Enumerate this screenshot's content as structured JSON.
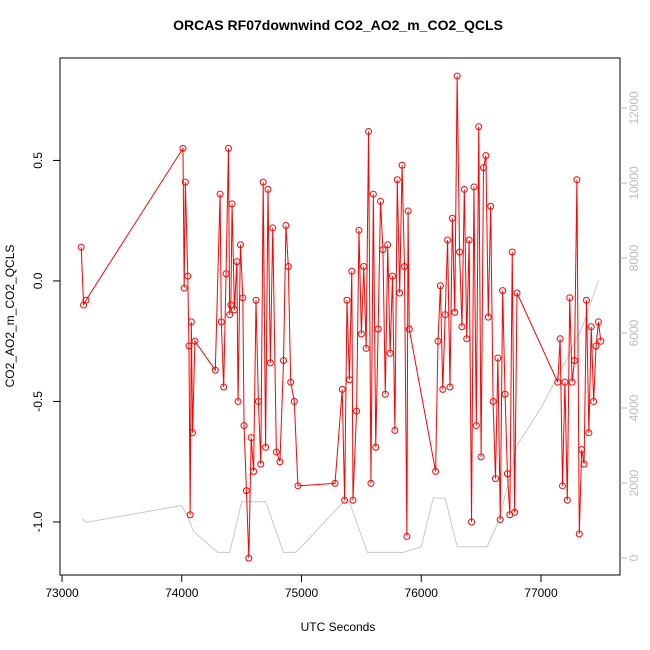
{
  "chart_data": {
    "type": "line",
    "title": "ORCAS RF07downwind CO2_AO2_m_CO2_QCLS",
    "x_label": "UTC Seconds",
    "y_label": "CO2_AO2_m_CO2_QCLS",
    "xlim": [
      72983,
      77660
    ],
    "ylim": [
      -1.22,
      0.925
    ],
    "y2lim": [
      -453,
      13333
    ],
    "xticks": [
      73000,
      74000,
      75000,
      76000,
      77000
    ],
    "yticks": [
      {
        "value": -1,
        "label": "-1.0"
      },
      -0.5,
      {
        "value": 0,
        "label": "0.0"
      },
      0.5
    ],
    "y2ticks": [
      0,
      2000,
      4000,
      6000,
      8000,
      10000,
      12000
    ],
    "grid": false,
    "series": [
      {
        "color": "#ff0000",
        "markers": true,
        "x": [
          73160,
          73180,
          73200,
          74010,
          74020,
          74030,
          74050,
          74060,
          74070,
          74080,
          74090,
          74110,
          74280,
          74320,
          74330,
          74350,
          74370,
          74390,
          74400,
          74410,
          74420,
          74440,
          74460,
          74470,
          74490,
          74510,
          74520,
          74540,
          74560,
          74580,
          74600,
          74620,
          74640,
          74660,
          74680,
          74700,
          74720,
          74740,
          74760,
          74790,
          74820,
          74850,
          74870,
          74890,
          74910,
          74940,
          74970,
          75280,
          75340,
          75360,
          75380,
          75400,
          75420,
          75430,
          75460,
          75480,
          75500,
          75520,
          75540,
          75560,
          75580,
          75600,
          75620,
          75640,
          75660,
          75680,
          75700,
          75720,
          75740,
          75760,
          75780,
          75800,
          75820,
          75840,
          75860,
          75880,
          75890,
          75900,
          76120,
          76140,
          76160,
          76180,
          76200,
          76220,
          76240,
          76260,
          76280,
          76300,
          76320,
          76340,
          76360,
          76380,
          76400,
          76420,
          76440,
          76460,
          76480,
          76500,
          76520,
          76540,
          76560,
          76580,
          76600,
          76620,
          76640,
          76660,
          76680,
          76700,
          76720,
          76740,
          76760,
          76780,
          76800,
          77140,
          77160,
          77180,
          77200,
          77220,
          77240,
          77260,
          77280,
          77300,
          77320,
          77340,
          77360,
          77380,
          77400,
          77420,
          77440,
          77460,
          77480,
          77500
        ],
        "values": [
          0.14,
          -0.1,
          -0.08,
          0.55,
          -0.03,
          0.41,
          0.02,
          -0.27,
          -0.97,
          -0.17,
          -0.63,
          -0.25,
          -0.37,
          0.36,
          -0.17,
          -0.44,
          0.03,
          0.55,
          -0.14,
          -0.1,
          0.32,
          -0.12,
          0.08,
          -0.5,
          0.15,
          -0.07,
          -0.6,
          -0.87,
          -1.15,
          -0.65,
          -0.79,
          -0.08,
          -0.5,
          -0.76,
          0.41,
          -0.69,
          0.38,
          -0.34,
          0.22,
          -0.71,
          -0.75,
          -0.33,
          0.23,
          0.06,
          -0.42,
          -0.5,
          -0.85,
          -0.84,
          -0.45,
          -0.91,
          -0.08,
          -0.41,
          0.04,
          -0.91,
          -0.54,
          0.21,
          -0.22,
          0.06,
          -0.28,
          0.62,
          -0.84,
          0.36,
          -0.69,
          -0.2,
          0.33,
          0.13,
          -0.47,
          0.15,
          -0.3,
          0.02,
          -0.62,
          0.42,
          -0.05,
          0.48,
          0.06,
          -1.06,
          0.29,
          -0.2,
          -0.79,
          -0.25,
          -0.02,
          -0.45,
          -0.14,
          0.17,
          -0.44,
          0.26,
          -0.13,
          0.85,
          0.12,
          -0.19,
          0.38,
          -0.24,
          0.17,
          -1.0,
          0.39,
          -0.6,
          0.64,
          -0.73,
          0.47,
          0.52,
          -0.15,
          0.31,
          -0.5,
          -0.82,
          -0.32,
          -0.99,
          -0.04,
          -0.47,
          -0.8,
          -0.97,
          0.12,
          -0.96,
          -0.05,
          -0.42,
          -0.24,
          -0.85,
          -0.42,
          -0.91,
          -0.07,
          -0.42,
          -0.33,
          0.42,
          -1.05,
          -0.7,
          -0.76,
          -0.08,
          -0.63,
          -0.19,
          -0.5,
          -0.27,
          -0.17,
          -0.25
        ]
      },
      {
        "color": "#c8c8c8",
        "axis": "y2",
        "markers": false,
        "x": [
          73170,
          73200,
          74000,
          74050,
          74100,
          74300,
          74400,
          74500,
          74700,
          74850,
          74950,
          75000,
          75350,
          75400,
          75550,
          75850,
          76000,
          76100,
          76200,
          76300,
          76400,
          76550,
          76650,
          76800,
          77000,
          77200,
          77350,
          77480
        ],
        "values": [
          1040,
          950,
          1400,
          1100,
          700,
          150,
          150,
          1500,
          1500,
          150,
          150,
          300,
          1500,
          1500,
          150,
          150,
          300,
          1600,
          1600,
          300,
          300,
          300,
          1000,
          3000,
          4000,
          5200,
          6200,
          7400
        ]
      }
    ]
  }
}
